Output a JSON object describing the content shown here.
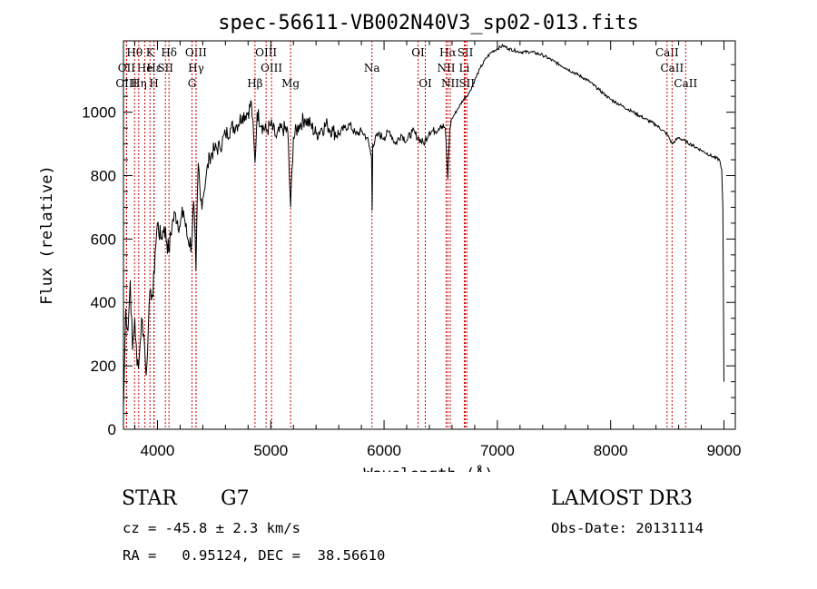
{
  "chart_data": {
    "type": "line",
    "title": "spec-56611-VB002N40V3_sp02-013.fits",
    "xlabel": "Wavelength (Å)",
    "ylabel": "Flux (relative)",
    "xlim": [
      3700,
      9100
    ],
    "ylim": [
      0,
      1225
    ],
    "x_ticks": [
      4000,
      5000,
      6000,
      7000,
      8000,
      9000
    ],
    "y_ticks": [
      0,
      200,
      400,
      600,
      800,
      1000
    ],
    "grid": false,
    "line_color": "#000000",
    "marker_color": "#cc0000",
    "series": [
      {
        "name": "flux",
        "x": [
          3700,
          3720,
          3740,
          3760,
          3780,
          3800,
          3820,
          3840,
          3860,
          3880,
          3900,
          3920,
          3940,
          3960,
          3980,
          4000,
          4030,
          4060,
          4100,
          4130,
          4160,
          4200,
          4230,
          4260,
          4300,
          4320,
          4340,
          4360,
          4380,
          4400,
          4430,
          4460,
          4500,
          4550,
          4600,
          4650,
          4700,
          4750,
          4800,
          4830,
          4861,
          4880,
          4920,
          4960,
          5000,
          5050,
          5100,
          5150,
          5175,
          5200,
          5250,
          5300,
          5350,
          5400,
          5450,
          5500,
          5550,
          5600,
          5650,
          5700,
          5750,
          5800,
          5850,
          5890,
          5895,
          5900,
          5950,
          6000,
          6050,
          6100,
          6150,
          6200,
          6250,
          6300,
          6350,
          6400,
          6450,
          6500,
          6540,
          6563,
          6580,
          6600,
          6650,
          6700,
          6750,
          6800,
          6850,
          6900,
          6950,
          7000,
          7050,
          7100,
          7200,
          7300,
          7400,
          7500,
          7600,
          7700,
          7800,
          7900,
          8000,
          8100,
          8200,
          8300,
          8400,
          8500,
          8542,
          8600,
          8700,
          8800,
          8900,
          8960,
          8980,
          8990,
          9000
        ],
        "y": [
          60,
          380,
          310,
          470,
          250,
          350,
          200,
          230,
          350,
          300,
          170,
          330,
          440,
          420,
          560,
          650,
          600,
          640,
          560,
          650,
          680,
          640,
          690,
          610,
          580,
          720,
          500,
          840,
          720,
          730,
          800,
          860,
          880,
          890,
          930,
          950,
          960,
          990,
          1000,
          1030,
          840,
          1000,
          960,
          940,
          960,
          920,
          950,
          940,
          700,
          920,
          960,
          980,
          960,
          930,
          950,
          960,
          940,
          930,
          950,
          960,
          930,
          940,
          920,
          860,
          690,
          900,
          930,
          920,
          940,
          900,
          930,
          910,
          940,
          920,
          900,
          940,
          940,
          960,
          950,
          790,
          950,
          980,
          1010,
          1040,
          1060,
          1100,
          1140,
          1170,
          1190,
          1200,
          1210,
          1200,
          1190,
          1190,
          1180,
          1160,
          1140,
          1120,
          1100,
          1070,
          1040,
          1020,
          1000,
          980,
          960,
          930,
          900,
          920,
          900,
          880,
          860,
          850,
          820,
          700,
          150
        ]
      }
    ],
    "line_markers": [
      {
        "label": "Hθ",
        "wavelength": 3798,
        "row": 1
      },
      {
        "label": "OII",
        "wavelength": 3727,
        "row": 2
      },
      {
        "label": "OIII",
        "wavelength": 3727,
        "row": 3
      },
      {
        "label": "He",
        "wavelength": 3889,
        "row": 2
      },
      {
        "label": "Hη",
        "wavelength": 3835,
        "row": 3
      },
      {
        "label": "K",
        "wavelength": 3934,
        "row": 1
      },
      {
        "label": "H",
        "wavelength": 3969,
        "row": 3
      },
      {
        "label": "Hε",
        "wavelength": 3970,
        "row": 2
      },
      {
        "label": "SII",
        "wavelength": 4070,
        "row": 2
      },
      {
        "label": "Hδ",
        "wavelength": 4102,
        "row": 1
      },
      {
        "label": "G",
        "wavelength": 4305,
        "row": 3
      },
      {
        "label": "OIII",
        "wavelength": 4340,
        "row": 1
      },
      {
        "label": "Hγ",
        "wavelength": 4341,
        "row": 2
      },
      {
        "label": "Hβ",
        "wavelength": 4861,
        "row": 3
      },
      {
        "label": "OIII",
        "wavelength": 4959,
        "row": 1
      },
      {
        "label": "OIII",
        "wavelength": 5007,
        "row": 2
      },
      {
        "label": "Mg",
        "wavelength": 5175,
        "row": 3
      },
      {
        "label": "Na",
        "wavelength": 5893,
        "row": 2
      },
      {
        "label": "OI",
        "wavelength": 6300,
        "row": 1
      },
      {
        "label": "OI",
        "wavelength": 6364,
        "row": 3
      },
      {
        "label": "Hα",
        "wavelength": 6563,
        "row": 1
      },
      {
        "label": "NII",
        "wavelength": 6548,
        "row": 2
      },
      {
        "label": "NII",
        "wavelength": 6584,
        "row": 3
      },
      {
        "label": "SII",
        "wavelength": 6717,
        "row": 1
      },
      {
        "label": "Li",
        "wavelength": 6708,
        "row": 2
      },
      {
        "label": "SII",
        "wavelength": 6731,
        "row": 3
      },
      {
        "label": "CaII",
        "wavelength": 8498,
        "row": 1
      },
      {
        "label": "CaII",
        "wavelength": 8542,
        "row": 2
      },
      {
        "label": "CaII",
        "wavelength": 8662,
        "row": 3
      }
    ]
  },
  "info": {
    "object_class": "STAR",
    "subclass": "G7",
    "survey": "LAMOST DR3",
    "redshift": "cz = -45.8 ± 2.3 km/s",
    "obs_date": "Obs-Date: 20131114",
    "coords": "RA =   0.95124, DEC =  38.56610"
  }
}
